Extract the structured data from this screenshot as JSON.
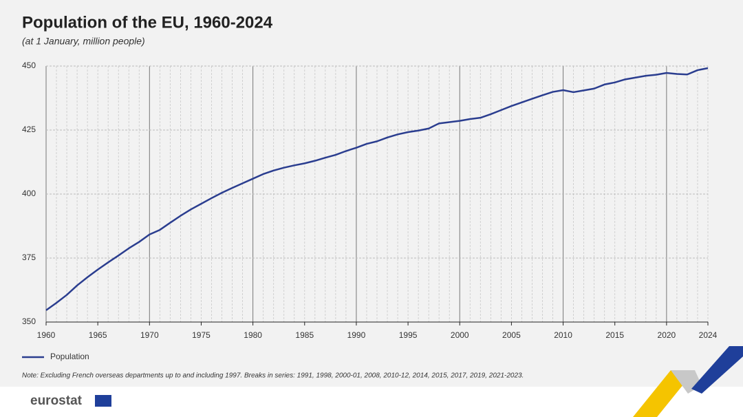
{
  "chart_data": {
    "type": "line",
    "title": "Population of the EU, 1960-2024",
    "subtitle": "(at 1 January, million people)",
    "note": "Note: Excluding French overseas departments up to and including 1997. Breaks in series: 1991, 1998, 2000-01, 2008, 2010-12, 2014, 2015, 2017, 2019, 2021-2023.",
    "logo": "eurostat",
    "x": [
      1960,
      1961,
      1962,
      1963,
      1964,
      1965,
      1966,
      1967,
      1968,
      1969,
      1970,
      1971,
      1972,
      1973,
      1974,
      1975,
      1976,
      1977,
      1978,
      1979,
      1980,
      1981,
      1982,
      1983,
      1984,
      1985,
      1986,
      1987,
      1988,
      1989,
      1990,
      1991,
      1992,
      1993,
      1994,
      1995,
      1996,
      1997,
      1998,
      1999,
      2000,
      2001,
      2002,
      2003,
      2004,
      2005,
      2006,
      2007,
      2008,
      2009,
      2010,
      2011,
      2012,
      2013,
      2014,
      2015,
      2016,
      2017,
      2018,
      2019,
      2020,
      2021,
      2022,
      2023,
      2024
    ],
    "series": [
      {
        "name": "Population",
        "color": "#2a3d8f",
        "values": [
          354.6,
          357.5,
          360.6,
          364.3,
          367.5,
          370.5,
          373.3,
          376.0,
          378.8,
          381.3,
          384.2,
          386.0,
          388.8,
          391.5,
          394.0,
          396.2,
          398.4,
          400.5,
          402.4,
          404.2,
          406.0,
          407.8,
          409.2,
          410.3,
          411.2,
          412.0,
          413.0,
          414.2,
          415.3,
          416.8,
          418.1,
          419.6,
          420.6,
          422.1,
          423.3,
          424.2,
          424.8,
          425.6,
          427.6,
          428.1,
          428.6,
          429.3,
          429.8,
          431.2,
          432.8,
          434.4,
          435.8,
          437.2,
          438.6,
          439.9,
          440.6,
          439.8,
          440.5,
          441.2,
          442.8,
          443.6,
          444.8,
          445.5,
          446.2,
          446.6,
          447.3,
          446.9,
          446.7,
          448.4,
          449.2
        ]
      }
    ],
    "xlim": [
      1960,
      2024
    ],
    "xticks": [
      1960,
      1965,
      1970,
      1975,
      1980,
      1985,
      1990,
      1995,
      2000,
      2005,
      2010,
      2015,
      2020,
      2024
    ],
    "ylim": [
      350,
      450
    ],
    "yticks": [
      350,
      375,
      400,
      425,
      450
    ],
    "grid": true,
    "legend": "bottom-left"
  }
}
